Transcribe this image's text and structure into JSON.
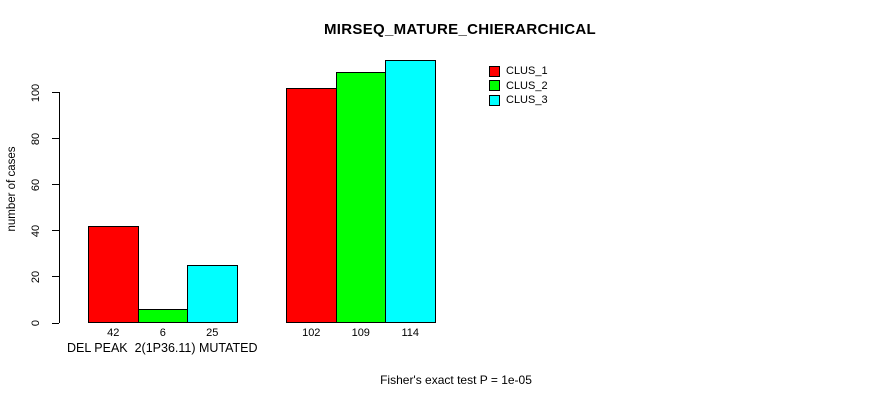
{
  "title": "MIRSEQ_MATURE_CHIERARCHICAL",
  "footer": "Fisher's exact test P = 1e-05",
  "chart_data": {
    "type": "bar",
    "title": "MIRSEQ_MATURE_CHIERARCHICAL",
    "xlabel": "",
    "ylabel": "number of cases",
    "ylim": [
      0,
      115
    ],
    "yticks": [
      0,
      20,
      40,
      60,
      80,
      100
    ],
    "grid": false,
    "legend_position": "top-right",
    "categories": [
      "DEL PEAK  2(1P36.11) MUTATED",
      ""
    ],
    "series": [
      {
        "name": "CLUS_1",
        "color": "#FF0000",
        "values": [
          42,
          102
        ]
      },
      {
        "name": "CLUS_2",
        "color": "#00FF00",
        "values": [
          6,
          109
        ]
      },
      {
        "name": "CLUS_3",
        "color": "#00FFFF",
        "values": [
          25,
          114
        ]
      }
    ],
    "bar_value_labels": [
      [
        42,
        6,
        25
      ],
      [
        102,
        109,
        114
      ]
    ],
    "annotation": "Fisher's exact test P = 1e-05",
    "colors": {
      "background": "#FFFFFF",
      "axis": "#000000",
      "text": "#000000"
    }
  }
}
